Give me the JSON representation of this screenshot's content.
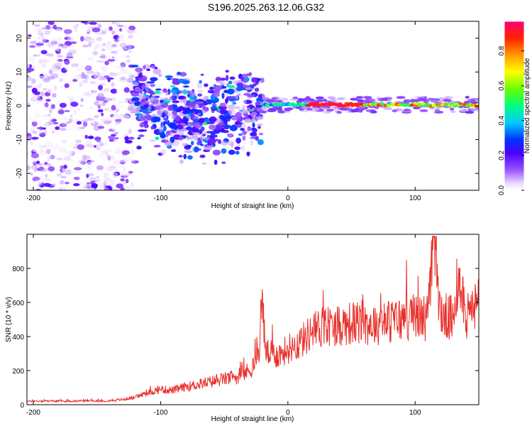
{
  "figure_title": "S196.2025.263.12.06.G32",
  "colors": {
    "series": "#e8302a",
    "frame": "#000000"
  },
  "chart_data": [
    {
      "type": "heatmap",
      "xlabel": "Height of straight line (km)",
      "ylabel": "Frequency (Hz)",
      "xlim": [
        -205,
        150
      ],
      "ylim": [
        -25,
        25
      ],
      "xticks": [
        "-200",
        "-100",
        "0",
        "100"
      ],
      "xtick_values": [
        -200,
        -100,
        0,
        100
      ],
      "yticks": [
        "-20",
        "-10",
        "0",
        "10",
        "20"
      ],
      "ytick_values": [
        -20,
        -10,
        0,
        10,
        20
      ],
      "colorbar": {
        "label": "Normalized spectral amplitude",
        "ticks": [
          "0.0",
          "0.2",
          "0.4",
          "0.6",
          "0.8"
        ],
        "tick_values": [
          0.0,
          0.2,
          0.4,
          0.6,
          0.8
        ],
        "range": [
          0,
          0.97
        ]
      },
      "regions": [
        {
          "name": "noise",
          "x_range": [
            -205,
            -120
          ],
          "freq_range": [
            -25,
            25
          ],
          "amplitude_range": [
            0.0,
            0.15
          ]
        },
        {
          "name": "scatter",
          "x_range": [
            -120,
            -20
          ],
          "freq_range": [
            -18,
            10
          ],
          "amplitude_range": [
            0.05,
            0.35
          ]
        },
        {
          "name": "signal-line",
          "x_range": [
            -20,
            150
          ],
          "freq_range": [
            -1,
            2
          ],
          "amplitude_range": [
            0.3,
            0.97
          ]
        }
      ]
    },
    {
      "type": "line",
      "xlabel": "Height of straight line (km)",
      "ylabel": "SNR (10 * v/v)",
      "xlim": [
        -205,
        150
      ],
      "ylim": [
        0,
        1000
      ],
      "xticks": [
        "-200",
        "-100",
        "0",
        "100"
      ],
      "xtick_values": [
        -200,
        -100,
        0,
        100
      ],
      "yticks": [
        "0",
        "200",
        "400",
        "600",
        "800"
      ],
      "ytick_values": [
        0,
        200,
        400,
        600,
        800
      ],
      "series": [
        {
          "name": "SNR",
          "x": [
            -205,
            -190,
            -175,
            -160,
            -145,
            -130,
            -120,
            -110,
            -100,
            -90,
            -80,
            -70,
            -60,
            -50,
            -40,
            -30,
            -25,
            -22,
            -20,
            -18,
            -15,
            -10,
            -5,
            0,
            5,
            10,
            15,
            20,
            25,
            30,
            35,
            40,
            50,
            60,
            70,
            80,
            90,
            100,
            110,
            115,
            120,
            130,
            135,
            140,
            150
          ],
          "values": [
            20,
            22,
            20,
            24,
            22,
            30,
            45,
            70,
            90,
            85,
            105,
            120,
            135,
            150,
            165,
            200,
            260,
            360,
            640,
            330,
            300,
            290,
            300,
            330,
            345,
            370,
            400,
            430,
            450,
            460,
            470,
            470,
            480,
            470,
            480,
            490,
            500,
            520,
            510,
            980,
            530,
            500,
            800,
            500,
            600
          ]
        }
      ]
    }
  ]
}
